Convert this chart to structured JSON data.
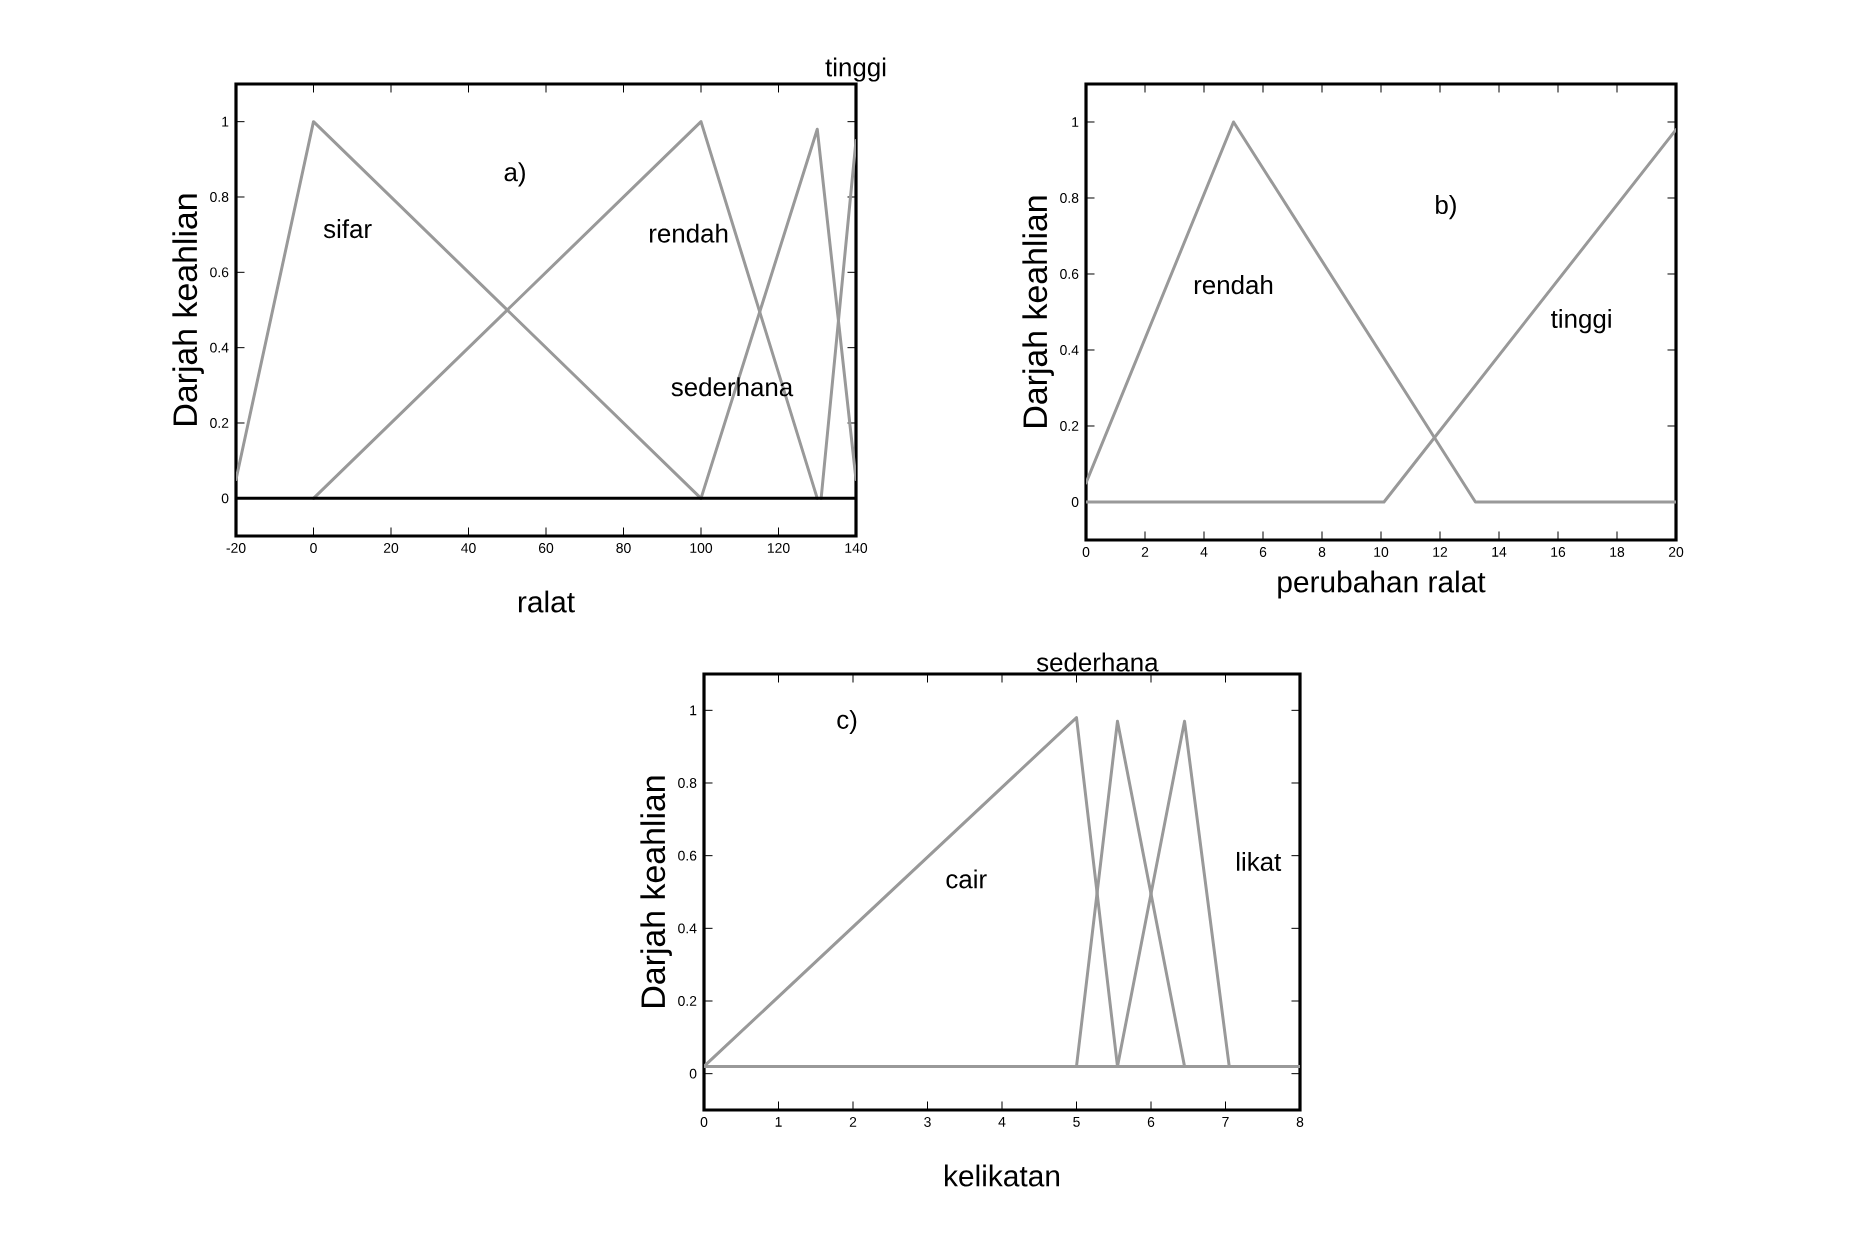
{
  "chart_data": [
    {
      "type": "line",
      "xlabel": "ralat",
      "ylabel": "Darjah keahlian",
      "xlim": [
        -20,
        140
      ],
      "ylim": [
        -0.1,
        1.1
      ],
      "xticks": [
        -20,
        0,
        20,
        40,
        60,
        80,
        100,
        120,
        140
      ],
      "yticks": [
        0,
        0.2,
        0.4,
        0.6,
        0.8,
        1
      ],
      "series": [
        {
          "color": "#999999",
          "x": [
            -20,
            0,
            100
          ],
          "values": [
            0.05,
            1,
            0
          ]
        },
        {
          "color": "#999999",
          "x": [
            0,
            100,
            130
          ],
          "values": [
            0,
            1,
            0
          ]
        },
        {
          "color": "#999999",
          "x": [
            100,
            130,
            140
          ],
          "values": [
            0,
            0.98,
            0.05
          ]
        },
        {
          "color": "#999999",
          "x": [
            131,
            140
          ],
          "values": [
            0,
            0.95
          ]
        }
      ],
      "ref_lines": [
        {
          "axis": "y",
          "value": 0,
          "color": "#000000"
        }
      ],
      "annotations": [
        "a)",
        "sifar",
        "rendah",
        "sederhana",
        "tinggi"
      ]
    },
    {
      "type": "line",
      "xlabel": "perubahan ralat",
      "ylabel": "Darjah keahlian",
      "xlim": [
        0,
        20
      ],
      "ylim": [
        -0.1,
        1.1
      ],
      "xticks": [
        0,
        2,
        4,
        6,
        8,
        10,
        12,
        14,
        16,
        18,
        20
      ],
      "yticks": [
        0,
        0.2,
        0.4,
        0.6,
        0.8,
        1
      ],
      "series": [
        {
          "color": "#999999",
          "x": [
            0,
            5,
            13.2,
            20
          ],
          "values": [
            0.05,
            1,
            0,
            0
          ]
        },
        {
          "color": "#999999",
          "x": [
            0,
            10.1,
            20
          ],
          "values": [
            0,
            0,
            0.98
          ]
        }
      ],
      "annotations": [
        "b)",
        "rendah",
        "tinggi"
      ]
    },
    {
      "type": "line",
      "xlabel": "kelikatan",
      "ylabel": "Darjah keahlian",
      "xlim": [
        0,
        8
      ],
      "ylim": [
        -0.1,
        1.1
      ],
      "xticks": [
        0,
        1,
        2,
        3,
        4,
        5,
        6,
        7,
        8
      ],
      "yticks": [
        0,
        0.2,
        0.4,
        0.6,
        0.8,
        1
      ],
      "series": [
        {
          "color": "#999999",
          "x": [
            0,
            5,
            5.55,
            8
          ],
          "values": [
            0.02,
            0.98,
            0.02,
            0.02
          ]
        },
        {
          "color": "#999999",
          "x": [
            0,
            5,
            5.55,
            6.45,
            8
          ],
          "values": [
            0.02,
            0.02,
            0.97,
            0.02,
            0.02
          ]
        },
        {
          "color": "#999999",
          "x": [
            0,
            5.55,
            6.45,
            7.05,
            8
          ],
          "values": [
            0.02,
            0.02,
            0.97,
            0.02,
            0.02
          ]
        }
      ],
      "annotations": [
        "c)",
        "cair",
        "sederhana",
        "likat"
      ]
    }
  ]
}
